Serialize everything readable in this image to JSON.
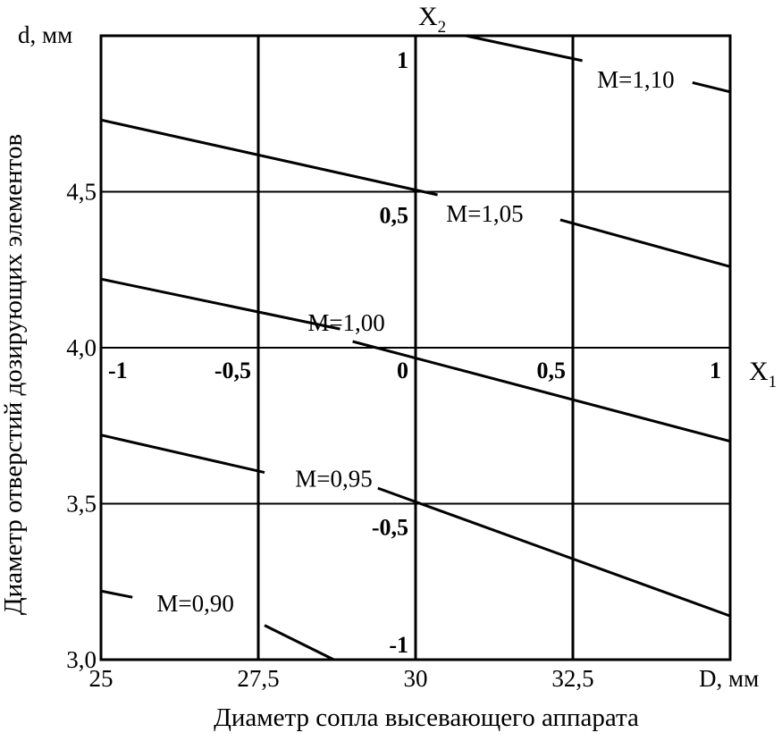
{
  "chart_data": {
    "type": "line",
    "xlabel": "Диаметр сопла высевающего аппарата",
    "ylabel": "Диаметр отверстий дозирующих элементов",
    "x_axis_unit_label": "D, мм",
    "y_axis_unit_label": "d, мм",
    "xlim": [
      25,
      35
    ],
    "ylim": [
      3.0,
      5.0
    ],
    "x_ticks": [
      {
        "value": 25,
        "label": "25"
      },
      {
        "value": 27.5,
        "label": "27,5"
      },
      {
        "value": 30,
        "label": "30"
      },
      {
        "value": 32.5,
        "label": "32,5"
      }
    ],
    "y_ticks": [
      {
        "value": 3.0,
        "label": "3,0"
      },
      {
        "value": 3.5,
        "label": "3,5"
      },
      {
        "value": 4.0,
        "label": "4,0"
      },
      {
        "value": 4.5,
        "label": "4,5"
      }
    ],
    "grid": true,
    "coded_axes": {
      "x1": {
        "name": "X",
        "subscript": "1",
        "ticks": [
          {
            "value": 25,
            "label": "-1"
          },
          {
            "value": 27.5,
            "label": "-0,5"
          },
          {
            "value": 30,
            "label": "0"
          },
          {
            "value": 32.5,
            "label": "0,5"
          },
          {
            "value": 35,
            "label": "1"
          }
        ]
      },
      "x2": {
        "name": "X",
        "subscript": "2",
        "ticks": [
          {
            "value": 5.0,
            "label": "1"
          },
          {
            "value": 4.5,
            "label": "0,5"
          },
          {
            "value": 3.5,
            "label": "-0,5"
          },
          {
            "value": 3.0,
            "label": "-1"
          }
        ]
      }
    },
    "series": [
      {
        "name": "M=1,10",
        "label_pos": {
          "x": 33.5,
          "y": 4.86
        },
        "segments": [
          [
            [
              30.8,
              5.0
            ],
            [
              32.65,
              4.92
            ]
          ],
          [
            [
              34.4,
              4.85
            ],
            [
              35.0,
              4.82
            ]
          ]
        ]
      },
      {
        "name": "M=1,05",
        "label_pos": {
          "x": 31.1,
          "y": 4.43
        },
        "segments": [
          [
            [
              25.0,
              4.73
            ],
            [
              30.35,
              4.49
            ]
          ],
          [
            [
              32.3,
              4.41
            ],
            [
              35.0,
              4.26
            ]
          ]
        ]
      },
      {
        "name": "M=1,00",
        "label_pos": {
          "x": 28.9,
          "y": 4.08
        },
        "segments": [
          [
            [
              25.0,
              4.22
            ],
            [
              28.8,
              4.06
            ]
          ],
          [
            [
              29.0,
              4.02
            ],
            [
              35.0,
              3.7
            ]
          ]
        ]
      },
      {
        "name": "M=0,95",
        "label_pos": {
          "x": 28.7,
          "y": 3.58
        },
        "segments": [
          [
            [
              25.0,
              3.72
            ],
            [
              27.6,
              3.6
            ]
          ],
          [
            [
              29.4,
              3.55
            ],
            [
              35.0,
              3.14
            ]
          ]
        ]
      },
      {
        "name": "M=0,90",
        "label_pos": {
          "x": 26.5,
          "y": 3.18
        },
        "segments": [
          [
            [
              25.0,
              3.22
            ],
            [
              25.5,
              3.2
            ]
          ],
          [
            [
              27.6,
              3.11
            ],
            [
              28.7,
              3.0
            ]
          ]
        ]
      }
    ]
  }
}
